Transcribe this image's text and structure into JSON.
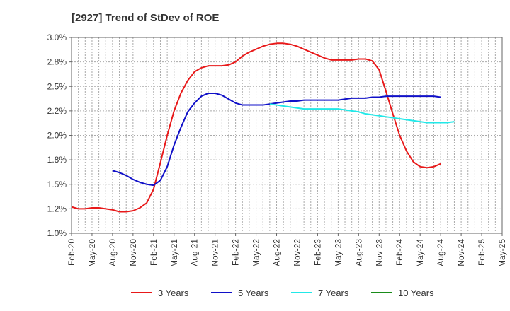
{
  "chart_data": {
    "type": "line",
    "title": "[2927]  Trend of StDev of ROE",
    "xlabel": "",
    "ylabel": "",
    "y_unit": "%",
    "ylim": [
      1.0,
      3.0
    ],
    "y_ticks": [
      "1.0%",
      "1.2%",
      "1.5%",
      "1.8%",
      "2.0%",
      "2.2%",
      "2.5%",
      "2.8%",
      "3.0%"
    ],
    "y_tick_values": [
      1.0,
      1.25,
      1.5,
      1.75,
      2.0,
      2.25,
      2.5,
      2.75,
      3.0
    ],
    "x_ticks": [
      "Feb-20",
      "May-20",
      "Aug-20",
      "Nov-20",
      "Feb-21",
      "May-21",
      "Aug-21",
      "Nov-21",
      "Feb-22",
      "May-22",
      "Aug-22",
      "Nov-22",
      "Feb-23",
      "May-23",
      "Aug-23",
      "Nov-23",
      "Feb-24",
      "May-24",
      "Aug-24",
      "Nov-24",
      "Feb-25",
      "May-25"
    ],
    "grid": true,
    "legend_position": "bottom",
    "series": [
      {
        "name": "3 Years",
        "color": "#e8191a",
        "start_index": 0,
        "values": [
          1.27,
          1.25,
          1.25,
          1.26,
          1.26,
          1.25,
          1.24,
          1.22,
          1.22,
          1.23,
          1.26,
          1.31,
          1.45,
          1.72,
          2.0,
          2.25,
          2.43,
          2.56,
          2.65,
          2.69,
          2.71,
          2.71,
          2.71,
          2.72,
          2.75,
          2.81,
          2.85,
          2.88,
          2.91,
          2.93,
          2.94,
          2.94,
          2.93,
          2.91,
          2.88,
          2.85,
          2.82,
          2.79,
          2.77,
          2.77,
          2.77,
          2.77,
          2.78,
          2.78,
          2.76,
          2.67,
          2.45,
          2.22,
          2.0,
          1.84,
          1.73,
          1.68,
          1.67,
          1.68,
          1.71
        ]
      },
      {
        "name": "5 Years",
        "color": "#1010c8",
        "start_index": 6,
        "values": [
          1.64,
          1.62,
          1.59,
          1.55,
          1.52,
          1.5,
          1.49,
          1.54,
          1.68,
          1.9,
          2.08,
          2.24,
          2.33,
          2.4,
          2.43,
          2.43,
          2.41,
          2.37,
          2.33,
          2.31,
          2.31,
          2.31,
          2.31,
          2.32,
          2.33,
          2.34,
          2.35,
          2.35,
          2.36,
          2.36,
          2.36,
          2.36,
          2.36,
          2.36,
          2.37,
          2.38,
          2.38,
          2.38,
          2.39,
          2.39,
          2.4,
          2.4,
          2.4,
          2.4,
          2.4,
          2.4,
          2.4,
          2.4,
          2.39
        ]
      },
      {
        "name": "7 Years",
        "color": "#22e8e8",
        "start_index": 29,
        "values": [
          2.32,
          2.31,
          2.3,
          2.29,
          2.28,
          2.27,
          2.27,
          2.27,
          2.27,
          2.27,
          2.27,
          2.26,
          2.25,
          2.24,
          2.22,
          2.21,
          2.2,
          2.19,
          2.18,
          2.17,
          2.16,
          2.15,
          2.14,
          2.13,
          2.13,
          2.13,
          2.13,
          2.14
        ]
      },
      {
        "name": "10 Years",
        "color": "#1a8c1a",
        "start_index": 0,
        "values": []
      }
    ]
  }
}
